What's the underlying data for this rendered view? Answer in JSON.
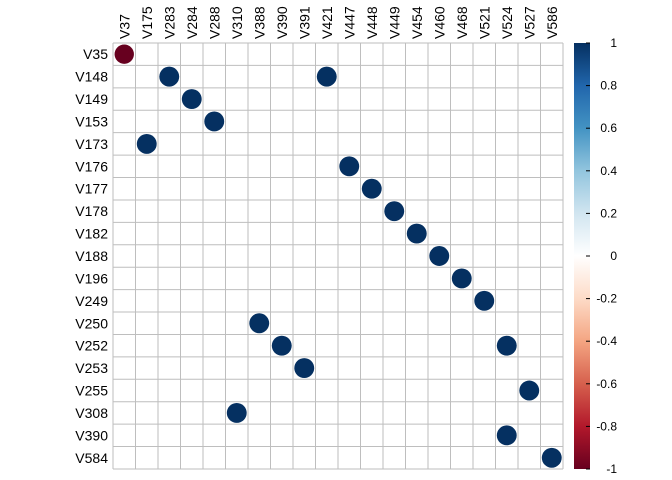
{
  "chart_data": {
    "type": "heatmap",
    "title": "",
    "columns": [
      "V37",
      "V175",
      "V283",
      "V284",
      "V288",
      "V310",
      "V388",
      "V390",
      "V391",
      "V421",
      "V447",
      "V448",
      "V449",
      "V454",
      "V460",
      "V468",
      "V521",
      "V524",
      "V527",
      "V586"
    ],
    "rows": [
      "V35",
      "V148",
      "V149",
      "V153",
      "V173",
      "V176",
      "V177",
      "V178",
      "V182",
      "V188",
      "V196",
      "V249",
      "V250",
      "V252",
      "V253",
      "V255",
      "V308",
      "V390",
      "V584"
    ],
    "cells": [
      {
        "row": "V35",
        "col": "V37",
        "value": -0.9
      },
      {
        "row": "V148",
        "col": "V283",
        "value": 0.95
      },
      {
        "row": "V148",
        "col": "V421",
        "value": 0.95
      },
      {
        "row": "V149",
        "col": "V284",
        "value": 0.95
      },
      {
        "row": "V153",
        "col": "V288",
        "value": 0.95
      },
      {
        "row": "V173",
        "col": "V175",
        "value": 0.95
      },
      {
        "row": "V176",
        "col": "V447",
        "value": 0.95
      },
      {
        "row": "V177",
        "col": "V448",
        "value": 0.95
      },
      {
        "row": "V178",
        "col": "V449",
        "value": 0.95
      },
      {
        "row": "V182",
        "col": "V454",
        "value": 0.95
      },
      {
        "row": "V188",
        "col": "V460",
        "value": 0.95
      },
      {
        "row": "V196",
        "col": "V468",
        "value": 0.95
      },
      {
        "row": "V249",
        "col": "V521",
        "value": 0.95
      },
      {
        "row": "V250",
        "col": "V388",
        "value": 0.95
      },
      {
        "row": "V252",
        "col": "V390",
        "value": 0.95
      },
      {
        "row": "V252",
        "col": "V524",
        "value": 0.95
      },
      {
        "row": "V253",
        "col": "V391",
        "value": 0.95
      },
      {
        "row": "V255",
        "col": "V527",
        "value": 0.95
      },
      {
        "row": "V308",
        "col": "V310",
        "value": 0.95
      },
      {
        "row": "V390",
        "col": "V524",
        "value": 0.95
      },
      {
        "row": "V584",
        "col": "V586",
        "value": 0.95
      }
    ],
    "colorbar": {
      "ticks": [
        1,
        0.8,
        0.6,
        0.4,
        0.2,
        0,
        -0.2,
        -0.4,
        -0.6,
        -0.8,
        -1
      ],
      "tick_labels": [
        "1",
        "0.8",
        "0.6",
        "0.4",
        "0.2",
        "0",
        "-0.2",
        "-0.4",
        "-0.6",
        "-0.8",
        "-1"
      ],
      "range": [
        -1,
        1
      ]
    },
    "colors": {
      "negative": "#67001F",
      "positive": "#053061",
      "grid": "#BEBEBE"
    },
    "grid": true,
    "legend": "right"
  }
}
